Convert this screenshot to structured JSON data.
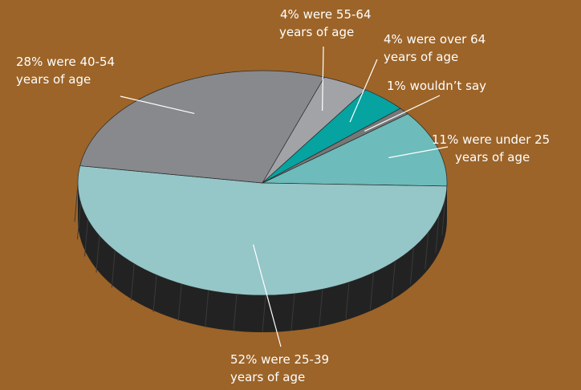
{
  "chart_data": {
    "type": "pie",
    "title": "",
    "slices": [
      {
        "name": "under 25",
        "value": 11,
        "color": "#6dbbbb",
        "label_line1": "11% were under 25",
        "label_line2": "years of age"
      },
      {
        "name": "25-39",
        "value": 52,
        "color": "#95c6c8",
        "label_line1": "52% were 25-39",
        "label_line2": "years of age"
      },
      {
        "name": "40-54",
        "value": 28,
        "color": "#88898c",
        "label_line1": "28% were 40-54",
        "label_line2": "years of age"
      },
      {
        "name": "55-64",
        "value": 4,
        "color": "#a2a3a6",
        "label_line1": "4% were 55-64",
        "label_line2": "years of age"
      },
      {
        "name": "over 64",
        "value": 4,
        "color": "#06a3a0",
        "label_line1": "4% were over 64",
        "label_line2": "years of age"
      },
      {
        "name": "wouldn't say",
        "value": 1,
        "color": "#777777",
        "label_line1": "1% wouldn’t say",
        "label_line2": ""
      }
    ],
    "side_color": "#222222",
    "background": "#9c6428"
  }
}
